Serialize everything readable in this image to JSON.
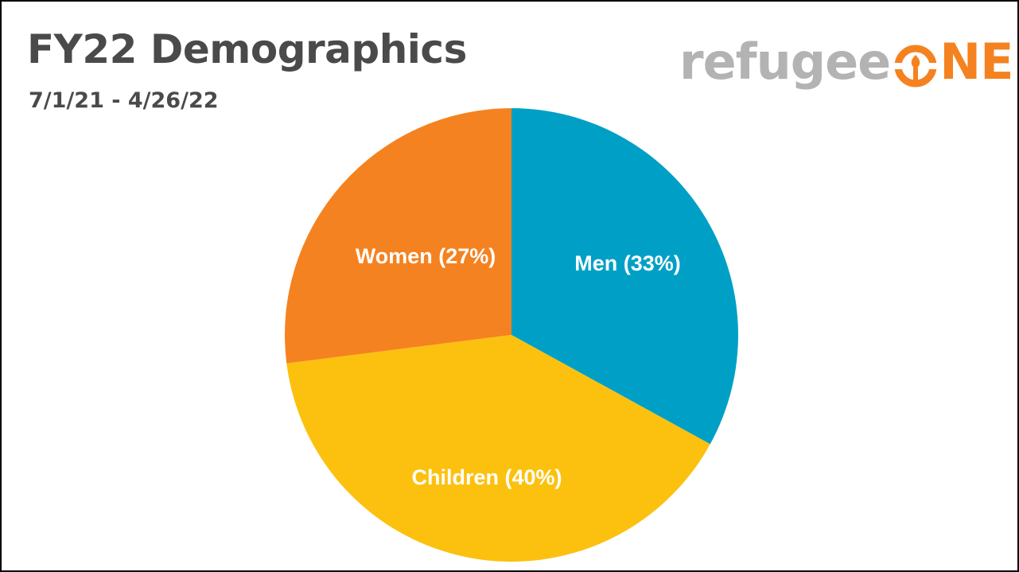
{
  "slide": {
    "title": "FY22 Demographics",
    "subtitle": "7/1/21 - 4/26/22"
  },
  "logo": {
    "text_part1": "refugee",
    "text_part2": "NE",
    "mark_icon": "refugeeone-o-mark-icon",
    "colors": {
      "grey": "#b3b3b3",
      "orange": "#f58220"
    }
  },
  "chart_data": {
    "type": "pie",
    "title": "",
    "slices": [
      {
        "label": "Men (33%)",
        "value": 33,
        "color": "#00a0c6"
      },
      {
        "label": "Children (40%)",
        "value": 40,
        "color": "#fcc10f"
      },
      {
        "label": "Women (27%)",
        "value": 27,
        "color": "#f58220"
      }
    ],
    "start_angle_deg": 0,
    "direction": "clockwise",
    "legend": "none",
    "labels_inside": true
  }
}
